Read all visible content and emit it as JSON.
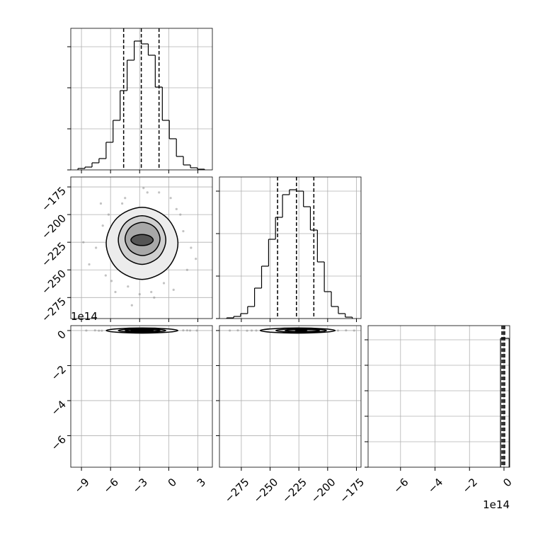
{
  "chart_data": [
    {
      "type": "histogram",
      "xlim": [
        -10.1,
        4.5
      ],
      "ylim": [
        0,
        200
      ],
      "xticks": [
        {
          "value": -9,
          "label": "−9"
        },
        {
          "value": -6,
          "label": "−6"
        },
        {
          "value": -3,
          "label": "−3"
        },
        0,
        3
      ],
      "yticks": [
        0,
        58,
        116,
        174
      ],
      "show_xticklabels": false,
      "show_yticklabels": false,
      "grid": true,
      "color": "#000000",
      "bins": [
        -9.36,
        -8.64,
        -7.91,
        -7.19,
        -6.46,
        -5.74,
        -5.01,
        -4.29,
        -3.56,
        -2.84,
        -2.11,
        -1.39,
        -0.66,
        0.06,
        0.79,
        1.51,
        2.24,
        2.96,
        3.69
      ],
      "values": [
        2,
        4,
        10,
        16,
        39,
        70,
        112,
        155,
        182,
        178,
        162,
        117,
        70,
        44,
        19,
        7,
        3,
        1
      ],
      "quantiles": [
        -4.65,
        -2.83,
        -1.0
      ]
    },
    {
      "type": "corner2d",
      "xlim": [
        -10.1,
        4.5
      ],
      "ylim": [
        -294,
        -166
      ],
      "xticks": [
        {
          "value": -9,
          "label": "−9"
        },
        {
          "value": -6,
          "label": "−6"
        },
        {
          "value": -3,
          "label": "−3"
        },
        0,
        3
      ],
      "yticks": [
        {
          "value": -275,
          "label": "−275"
        },
        {
          "value": -250,
          "label": "−250"
        },
        {
          "value": -225,
          "label": "−225"
        },
        {
          "value": -200,
          "label": "−200"
        },
        {
          "value": -175,
          "label": "−175"
        }
      ],
      "show_xticklabels": false,
      "show_yticklabels": true,
      "grid": true,
      "color": "#000000",
      "contour_fills": [
        "#ececec",
        "#cfcfcf",
        "#a8a8a8",
        "#555555"
      ],
      "x": [
        -7.5,
        -6.8,
        -8.2,
        -5.9,
        -7.0,
        -6.2,
        -4.5,
        -1.0,
        0.8,
        1.5,
        2.3,
        1.9,
        0.5,
        -1.5,
        -3.0,
        -4.2,
        -5.5,
        -2.2,
        0.2,
        -3.8,
        -6.5,
        1.2,
        -0.5,
        -4.8,
        -2.6,
        2.8,
        -8.8,
        -1.8
      ],
      "y": [
        -230,
        -210,
        -245,
        -260,
        -190,
        -200,
        -185,
        -180,
        -195,
        -215,
        -230,
        -250,
        -268,
        -275,
        -272,
        -265,
        -270,
        -180,
        -185,
        -282,
        -255,
        -200,
        -262,
        -190,
        -176,
        -240,
        -225,
        -270
      ],
      "contours": [
        {
          "x": [
            0.95,
            -0.16,
            -2.75,
            -5.34,
            -6.45,
            -5.34,
            -2.75,
            -0.16
          ],
          "y": [
            -226,
            -203.2,
            -193.4,
            -203.2,
            -226,
            -248.8,
            -258.6,
            -248.8
          ]
        },
        {
          "x": [
            -0.3,
            -1.03,
            -2.75,
            -4.47,
            -5.2,
            -4.47,
            -2.75,
            -1.03
          ],
          "y": [
            -223,
            -207.6,
            -201,
            -207.6,
            -223,
            -238.4,
            -245,
            -238.4
          ]
        },
        {
          "x": [
            -0.9,
            -1.44,
            -2.7,
            -3.96,
            -4.5,
            -3.96,
            -2.7,
            -1.44
          ],
          "y": [
            -222,
            -211.5,
            -207,
            -211.5,
            -222,
            -232.5,
            -237,
            -232.5
          ]
        },
        {
          "x": [
            -1.6,
            -1.95,
            -2.75,
            -3.55,
            -3.9,
            -3.55,
            -2.75,
            -1.95
          ],
          "y": [
            -223,
            -219.5,
            -218,
            -219.5,
            -223,
            -226.5,
            -228,
            -226.5
          ]
        }
      ]
    },
    {
      "type": "histogram",
      "xlim": [
        -294,
        -171
      ],
      "ylim": [
        0,
        200
      ],
      "xticks": [
        {
          "value": -275,
          "label": "−275"
        },
        {
          "value": -250,
          "label": "−250"
        },
        {
          "value": -225,
          "label": "−225"
        },
        {
          "value": -200,
          "label": "−200"
        },
        {
          "value": -175,
          "label": "−175"
        }
      ],
      "yticks": [
        0,
        60,
        120,
        180
      ],
      "show_xticklabels": false,
      "show_yticklabels": false,
      "grid": true,
      "color": "#000000",
      "bins": [
        -287.7,
        -281.6,
        -275.6,
        -269.5,
        -263.5,
        -257.4,
        -251.3,
        -245.3,
        -239.2,
        -233.2,
        -227.1,
        -221.0,
        -215.0,
        -208.9,
        -202.9,
        -196.8,
        -190.7,
        -184.7,
        -178.6
      ],
      "values": [
        1,
        3,
        7,
        17,
        43,
        74,
        112,
        143,
        175,
        182,
        180,
        158,
        125,
        80,
        38,
        17,
        7,
        2
      ],
      "quantiles": [
        -243.5,
        -227.1,
        -212.0
      ]
    },
    {
      "type": "corner2d",
      "xlim": [
        -10.1,
        4.5
      ],
      "ylim": [
        -7.8,
        0.28
      ],
      "y_offset_label": "1e14",
      "xticks": [
        {
          "value": -9,
          "label": "−9"
        },
        {
          "value": -6,
          "label": "−6"
        },
        {
          "value": -3,
          "label": "−3"
        },
        0,
        3
      ],
      "yticks": [
        {
          "value": -6,
          "label": "−6"
        },
        {
          "value": -4,
          "label": "−4"
        },
        {
          "value": -2,
          "label": "−2"
        },
        0
      ],
      "show_xticklabels": true,
      "show_yticklabels": true,
      "grid": true,
      "color": "#000000",
      "contour_fills": [
        "#ececec",
        "#cfcfcf",
        "#a8a8a8",
        "#555555"
      ],
      "x": [
        -8.5,
        -7.6,
        -6.9,
        -6.2,
        -5.5,
        -4.8,
        -4.1,
        -3.4,
        -2.7,
        -2.0,
        -1.3,
        -0.6,
        0.1,
        0.8,
        1.5,
        2.2,
        2.9,
        -7.2,
        1.9,
        -5.0
      ],
      "y": [
        0,
        0.01,
        -0.01,
        0,
        0.02,
        -0.02,
        0,
        0.01,
        0,
        -0.01,
        0.02,
        0,
        -0.01,
        0,
        0.01,
        0,
        0,
        -0.01,
        0.01,
        0
      ],
      "contours": [
        {
          "x": [
            0.95,
            -0.16,
            -2.75,
            -5.34,
            -6.45,
            -5.34,
            -2.75,
            -0.16
          ],
          "y": [
            0,
            0.1,
            0.15,
            0.1,
            0,
            -0.1,
            -0.15,
            -0.1
          ]
        },
        {
          "x": [
            -0.3,
            -1.03,
            -2.75,
            -4.47,
            -5.2,
            -4.47,
            -2.75,
            -1.03
          ],
          "y": [
            0,
            0.07,
            0.1,
            0.07,
            0,
            -0.07,
            -0.1,
            -0.07
          ]
        },
        {
          "x": [
            -0.9,
            -1.44,
            -2.7,
            -3.96,
            -4.5,
            -3.96,
            -2.7,
            -1.44
          ],
          "y": [
            0,
            0.045,
            0.065,
            0.045,
            0,
            -0.045,
            -0.065,
            -0.045
          ]
        },
        {
          "x": [
            -1.6,
            -1.95,
            -2.75,
            -3.55,
            -3.9,
            -3.55,
            -2.75,
            -1.95
          ],
          "y": [
            0,
            0.02,
            0.03,
            0.02,
            0,
            -0.02,
            -0.03,
            -0.02
          ]
        }
      ]
    },
    {
      "type": "corner2d",
      "xlim": [
        -294,
        -171
      ],
      "ylim": [
        -7.8,
        0.28
      ],
      "xticks": [
        {
          "value": -275,
          "label": "−275"
        },
        {
          "value": -250,
          "label": "−250"
        },
        {
          "value": -225,
          "label": "−225"
        },
        {
          "value": -200,
          "label": "−200"
        },
        {
          "value": -175,
          "label": "−175"
        }
      ],
      "yticks": [
        -6,
        -4,
        -2,
        0
      ],
      "show_xticklabels": true,
      "show_yticklabels": false,
      "grid": true,
      "color": "#000000",
      "contour_fills": [
        "#ececec",
        "#cfcfcf",
        "#a8a8a8",
        "#555555"
      ],
      "x": [
        -285,
        -278,
        -270,
        -262,
        -255,
        -248,
        -240,
        -233,
        -226,
        -219,
        -212,
        -205,
        -198,
        -191,
        -184,
        -177,
        -266,
        -204,
        -243,
        -215
      ],
      "y": [
        0,
        0.01,
        -0.01,
        0,
        0.02,
        -0.02,
        0,
        0.01,
        0,
        -0.01,
        0.02,
        0,
        -0.01,
        0,
        0.01,
        0,
        0,
        -0.01,
        0.01,
        0
      ],
      "contours": [
        {
          "x": [
            -193.4,
            -203.2,
            -226,
            -248.8,
            -258.6,
            -248.8,
            -226,
            -203.2
          ],
          "y": [
            0,
            0.1,
            0.15,
            0.1,
            0,
            -0.1,
            -0.15,
            -0.1
          ]
        },
        {
          "x": [
            -201,
            -207.6,
            -223,
            -238.4,
            -245,
            -238.4,
            -223,
            -207.6
          ],
          "y": [
            0,
            0.07,
            0.1,
            0.07,
            0,
            -0.07,
            -0.1,
            -0.07
          ]
        },
        {
          "x": [
            -207,
            -211.5,
            -222,
            -232.5,
            -237,
            -232.5,
            -222,
            -211.5
          ],
          "y": [
            0,
            0.045,
            0.065,
            0.045,
            0,
            -0.045,
            -0.065,
            -0.045
          ]
        },
        {
          "x": [
            -218,
            -219.5,
            -223,
            -226.5,
            -228,
            -226.5,
            -223,
            -219.5
          ],
          "y": [
            0,
            0.02,
            0.03,
            0.02,
            0,
            -0.02,
            -0.03,
            -0.02
          ]
        }
      ]
    },
    {
      "type": "histogram",
      "xlim": [
        -7.88,
        0.33
      ],
      "ylim": [
        0,
        200
      ],
      "x_offset_label": "1e14",
      "xticks": [
        {
          "value": -6,
          "label": "−6"
        },
        {
          "value": -4,
          "label": "−4"
        },
        {
          "value": -2,
          "label": "−2"
        },
        0
      ],
      "yticks": [
        0,
        36,
        72,
        108,
        144,
        180
      ],
      "show_xticklabels": true,
      "show_yticklabels": false,
      "grid": true,
      "color": "#000000",
      "bins": [
        -0.2,
        0.3
      ],
      "values": [
        182
      ],
      "quantiles": [
        -0.12,
        -0.04,
        0.04
      ]
    }
  ]
}
